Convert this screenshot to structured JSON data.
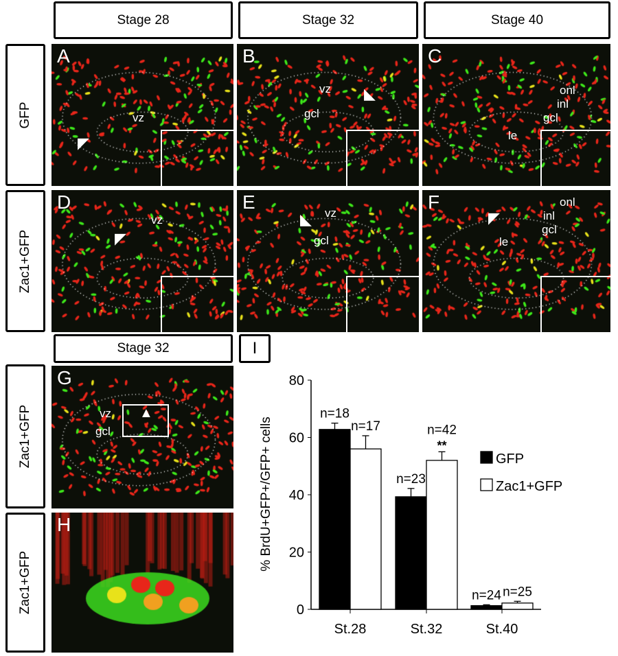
{
  "headers": {
    "col1": "Stage 28",
    "col2": "Stage 32",
    "col3": "Stage 40",
    "row3": "Stage 32",
    "chart_letter": "I"
  },
  "row_labels": {
    "r1": "GFP",
    "r2": "Zac1+GFP",
    "r3": "Zac1+GFP",
    "r4": "Zac1+GFP"
  },
  "panels": {
    "A": {
      "letter": "A",
      "labels": [
        "vz"
      ]
    },
    "B": {
      "letter": "B",
      "labels": [
        "vz",
        "gcl"
      ]
    },
    "C": {
      "letter": "C",
      "labels": [
        "onl",
        "inl",
        "gcl",
        "le"
      ]
    },
    "D": {
      "letter": "D",
      "labels": [
        "vz"
      ]
    },
    "E": {
      "letter": "E",
      "labels": [
        "vz",
        "gcl"
      ]
    },
    "F": {
      "letter": "F",
      "labels": [
        "onl",
        "inl",
        "gcl",
        "le"
      ]
    },
    "G": {
      "letter": "G",
      "labels": [
        "vz",
        "gcl"
      ]
    },
    "H": {
      "letter": "H",
      "labels": []
    }
  },
  "colors": {
    "red": "#e8261a",
    "green": "#3ee81a",
    "yellow": "#e8e21a",
    "background": "#0c0f08"
  },
  "chart_data": {
    "type": "bar",
    "categories": [
      "St.28",
      "St.32",
      "St.40"
    ],
    "ylabel": "% BrdU+GFP+/GFP+ cells",
    "ylim": [
      0,
      80
    ],
    "yticks": [
      0,
      20,
      40,
      60,
      80
    ],
    "legend_position": "right",
    "series": [
      {
        "name": "GFP",
        "color": "#000000",
        "values": [
          62.8,
          39.3,
          1.3
        ],
        "errors": [
          2.2,
          2.9,
          0.3
        ],
        "n_labels": [
          "n=18",
          "n=23",
          "n=24"
        ]
      },
      {
        "name": "Zac1+GFP",
        "color": "#ffffff",
        "values": [
          56.0,
          52.0,
          2.2
        ],
        "errors": [
          4.6,
          3.0,
          0.6
        ],
        "n_labels": [
          "n=17",
          "n=42",
          "n=25"
        ]
      }
    ],
    "annotations": [
      {
        "category": "St.32",
        "series": "Zac1+GFP",
        "text": "**"
      }
    ]
  }
}
